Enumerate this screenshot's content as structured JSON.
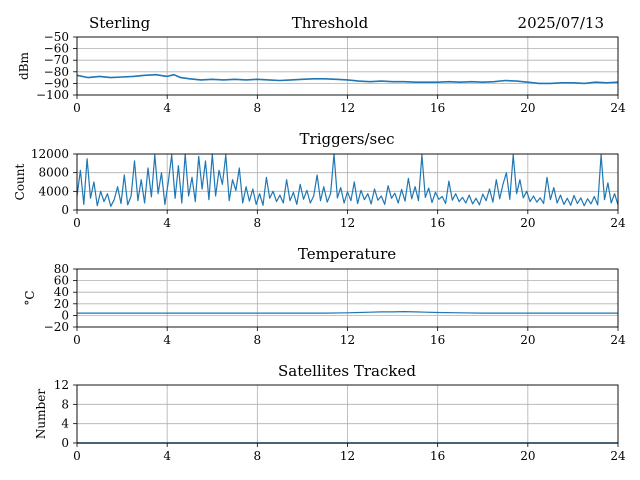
{
  "header": {
    "station": "Sterling",
    "date": "2025/07/13"
  },
  "colors": {
    "series": "#1f77b4",
    "grid": "#b0b0b0"
  },
  "chart_data": [
    {
      "type": "line",
      "title": "Threshold",
      "ylabel": "dBm",
      "xlim": [
        0,
        24
      ],
      "ylim": [
        -100,
        -50
      ],
      "xticks": [
        "0",
        "4",
        "8",
        "12",
        "16",
        "20",
        "24"
      ],
      "yticks": [
        "−100",
        "−90",
        "−80",
        "−70",
        "−60",
        "−50"
      ],
      "grid": true,
      "x": [
        0,
        0.5,
        1,
        1.5,
        2,
        2.5,
        3,
        3.5,
        4,
        4.3,
        4.6,
        5,
        5.5,
        6,
        6.5,
        7,
        7.5,
        8,
        8.5,
        9,
        9.5,
        10,
        10.5,
        11,
        11.5,
        12,
        12.5,
        13,
        13.5,
        14,
        14.5,
        15,
        15.5,
        16,
        16.5,
        17,
        17.5,
        18,
        18.5,
        19,
        19.5,
        20,
        20.5,
        21,
        21.5,
        22,
        22.5,
        23,
        23.5,
        24
      ],
      "y": [
        -83,
        -85,
        -84,
        -85,
        -84.5,
        -84,
        -83,
        -82.5,
        -84,
        -82.5,
        -85,
        -86,
        -87,
        -86.5,
        -87,
        -86.5,
        -87,
        -86.5,
        -87,
        -87.5,
        -87,
        -86.5,
        -86,
        -86,
        -86.5,
        -87,
        -88,
        -88.5,
        -88,
        -88.5,
        -88.5,
        -89,
        -89,
        -89,
        -88.5,
        -89,
        -88.5,
        -89,
        -88.5,
        -87.5,
        -88,
        -89,
        -90,
        -90,
        -89.5,
        -89.5,
        -90,
        -89,
        -89.5,
        -89
      ]
    },
    {
      "type": "line",
      "title": "Triggers/sec",
      "ylabel": "Count",
      "xlim": [
        0,
        24
      ],
      "ylim": [
        0,
        12000
      ],
      "xticks": [
        "0",
        "4",
        "8",
        "12",
        "16",
        "20",
        "24"
      ],
      "yticks": [
        "0",
        "4000",
        "8000",
        "12000"
      ],
      "grid": true,
      "x": [
        0,
        0.15,
        0.3,
        0.45,
        0.6,
        0.75,
        0.9,
        1.05,
        1.2,
        1.35,
        1.5,
        1.65,
        1.8,
        1.95,
        2.1,
        2.25,
        2.4,
        2.55,
        2.7,
        2.85,
        3,
        3.15,
        3.3,
        3.45,
        3.6,
        3.75,
        3.9,
        4.05,
        4.2,
        4.35,
        4.5,
        4.65,
        4.8,
        4.95,
        5.1,
        5.25,
        5.4,
        5.55,
        5.7,
        5.85,
        6,
        6.15,
        6.3,
        6.45,
        6.6,
        6.75,
        6.9,
        7.05,
        7.2,
        7.35,
        7.5,
        7.65,
        7.8,
        7.95,
        8.1,
        8.25,
        8.4,
        8.55,
        8.7,
        8.85,
        9,
        9.15,
        9.3,
        9.45,
        9.6,
        9.75,
        9.9,
        10.05,
        10.2,
        10.35,
        10.5,
        10.65,
        10.8,
        10.95,
        11.1,
        11.25,
        11.4,
        11.55,
        11.7,
        11.85,
        12,
        12.15,
        12.3,
        12.45,
        12.6,
        12.75,
        12.9,
        13.05,
        13.2,
        13.35,
        13.5,
        13.65,
        13.8,
        13.95,
        14.1,
        14.25,
        14.4,
        14.55,
        14.7,
        14.85,
        15,
        15.15,
        15.3,
        15.45,
        15.6,
        15.75,
        15.9,
        16.05,
        16.2,
        16.35,
        16.5,
        16.65,
        16.8,
        16.95,
        17.1,
        17.25,
        17.4,
        17.55,
        17.7,
        17.85,
        18,
        18.15,
        18.3,
        18.45,
        18.6,
        18.75,
        18.9,
        19.05,
        19.2,
        19.35,
        19.5,
        19.65,
        19.8,
        19.95,
        20.1,
        20.25,
        20.4,
        20.55,
        20.7,
        20.85,
        21,
        21.15,
        21.3,
        21.45,
        21.6,
        21.75,
        21.9,
        22.05,
        22.2,
        22.35,
        22.5,
        22.65,
        22.8,
        22.95,
        23.1,
        23.25,
        23.4,
        23.55,
        23.7,
        23.85,
        24
      ],
      "y": [
        3000,
        8500,
        1200,
        11000,
        2500,
        6000,
        900,
        4000,
        1800,
        3500,
        800,
        2200,
        5000,
        1400,
        7500,
        1100,
        3000,
        10500,
        2000,
        6500,
        1500,
        9000,
        2800,
        11800,
        3500,
        8000,
        1200,
        6000,
        11800,
        2500,
        9500,
        1500,
        12000,
        3000,
        7000,
        1800,
        11500,
        4500,
        10500,
        2200,
        12000,
        3000,
        8500,
        5500,
        11800,
        2000,
        6500,
        4200,
        9000,
        1500,
        5000,
        1900,
        4500,
        1200,
        3500,
        1000,
        7000,
        2500,
        4000,
        1800,
        3200,
        1500,
        6500,
        2000,
        3800,
        1200,
        5500,
        2300,
        4200,
        1500,
        3000,
        7500,
        2000,
        5000,
        1700,
        3500,
        12000,
        2600,
        4800,
        1500,
        3900,
        2000,
        6000,
        1400,
        4200,
        2200,
        3500,
        1300,
        4500,
        2100,
        3000,
        1200,
        5200,
        2500,
        3600,
        1500,
        4400,
        1900,
        6800,
        2400,
        5000,
        2000,
        11800,
        2700,
        4700,
        1600,
        3800,
        2300,
        2900,
        1400,
        6200,
        2100,
        3500,
        1800,
        2700,
        1500,
        3200,
        1300,
        2500,
        1100,
        3400,
        2000,
        4500,
        1700,
        6500,
        2400,
        5500,
        8000,
        2300,
        11800,
        3500,
        6500,
        2600,
        4000,
        1800,
        3000,
        1700,
        2600,
        1400,
        7000,
        2200,
        4800,
        1500,
        3200,
        1200,
        2500,
        1000,
        3100,
        1400,
        2600,
        900,
        2400,
        1300,
        2900,
        1100,
        11800,
        2200,
        5800,
        1500,
        3500,
        1100
      ]
    },
    {
      "type": "line",
      "title": "Temperature",
      "ylabel": "°C",
      "xlim": [
        0,
        24
      ],
      "ylim": [
        -20,
        80
      ],
      "xticks": [
        "0",
        "4",
        "8",
        "12",
        "16",
        "20",
        "24"
      ],
      "yticks": [
        "−20",
        "0",
        "20",
        "40",
        "60",
        "80"
      ],
      "grid": true,
      "x": [
        0,
        1,
        2,
        3,
        4,
        5,
        6,
        7,
        8,
        9,
        10,
        11,
        12,
        12.5,
        13,
        13.5,
        14,
        14.5,
        15,
        15.5,
        16,
        17,
        18,
        19,
        20,
        21,
        22,
        23,
        24
      ],
      "y": [
        4,
        4,
        4,
        4,
        4,
        4,
        4,
        4,
        4,
        4,
        4,
        4,
        4.5,
        5,
        5.5,
        6,
        6,
        6.5,
        6,
        5.5,
        5,
        4.5,
        4,
        4,
        4,
        4,
        4,
        4,
        4
      ]
    },
    {
      "type": "line",
      "title": "Satellites Tracked",
      "ylabel": "Number",
      "xlim": [
        0,
        24
      ],
      "ylim": [
        0,
        12
      ],
      "xticks": [
        "0",
        "4",
        "8",
        "12",
        "16",
        "20",
        "24"
      ],
      "yticks": [
        "0",
        "4",
        "8",
        "12"
      ],
      "grid": true,
      "x": [
        0,
        24
      ],
      "y": [
        0,
        0
      ]
    }
  ]
}
